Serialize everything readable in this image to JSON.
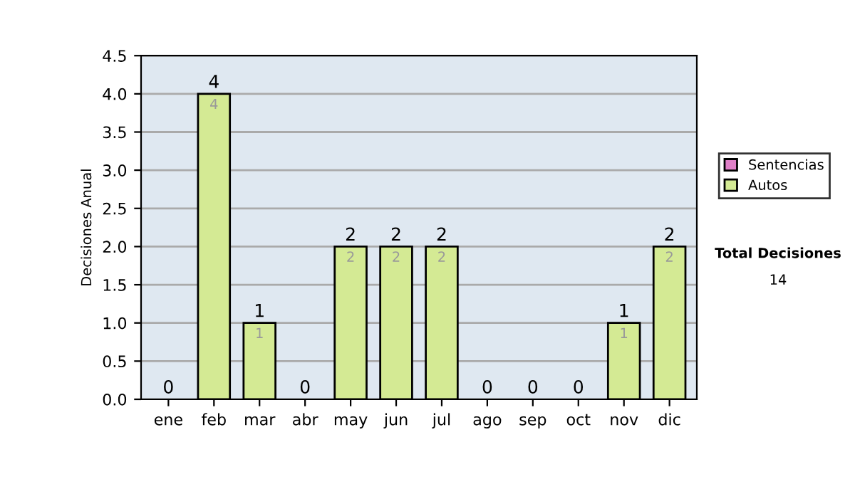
{
  "chart_data": {
    "type": "bar",
    "ylabel": "Decisiones Anual",
    "stacked": true,
    "categories": [
      "ene",
      "feb",
      "mar",
      "abr",
      "may",
      "jun",
      "jul",
      "ago",
      "sep",
      "oct",
      "nov",
      "dic"
    ],
    "series": [
      {
        "name": "Sentencias",
        "color": "#e080c8",
        "values": [
          0,
          0,
          0,
          0,
          0,
          0,
          0,
          0,
          0,
          0,
          0,
          0
        ]
      },
      {
        "name": "Autos",
        "color": "#d4ea94",
        "values": [
          0,
          4,
          1,
          0,
          2,
          2,
          2,
          0,
          0,
          0,
          1,
          2
        ],
        "value_labels": [
          null,
          "4",
          "1",
          null,
          "2",
          "2",
          "2",
          null,
          null,
          null,
          "1",
          "2"
        ]
      }
    ],
    "totals": [
      "0",
      "4",
      "1",
      "0",
      "2",
      "2",
      "2",
      "0",
      "0",
      "0",
      "1",
      "2"
    ],
    "ylim": [
      0,
      4.5
    ],
    "yticks": [
      {
        "value": 0,
        "label": "0.0"
      },
      {
        "value": 0.5,
        "label": "0.5"
      },
      {
        "value": 1,
        "label": "1.0"
      },
      {
        "value": 1.5,
        "label": "1.5"
      },
      {
        "value": 2,
        "label": "2.0"
      },
      {
        "value": 2.5,
        "label": "2.5"
      },
      {
        "value": 3,
        "label": "3.0"
      },
      {
        "value": 3.5,
        "label": "3.5"
      },
      {
        "value": 4,
        "label": "4.0"
      },
      {
        "value": 4.5,
        "label": "4.5"
      }
    ],
    "grid": "y",
    "legend": "right",
    "annotations": [
      "Total Decisiones",
      "14"
    ]
  }
}
